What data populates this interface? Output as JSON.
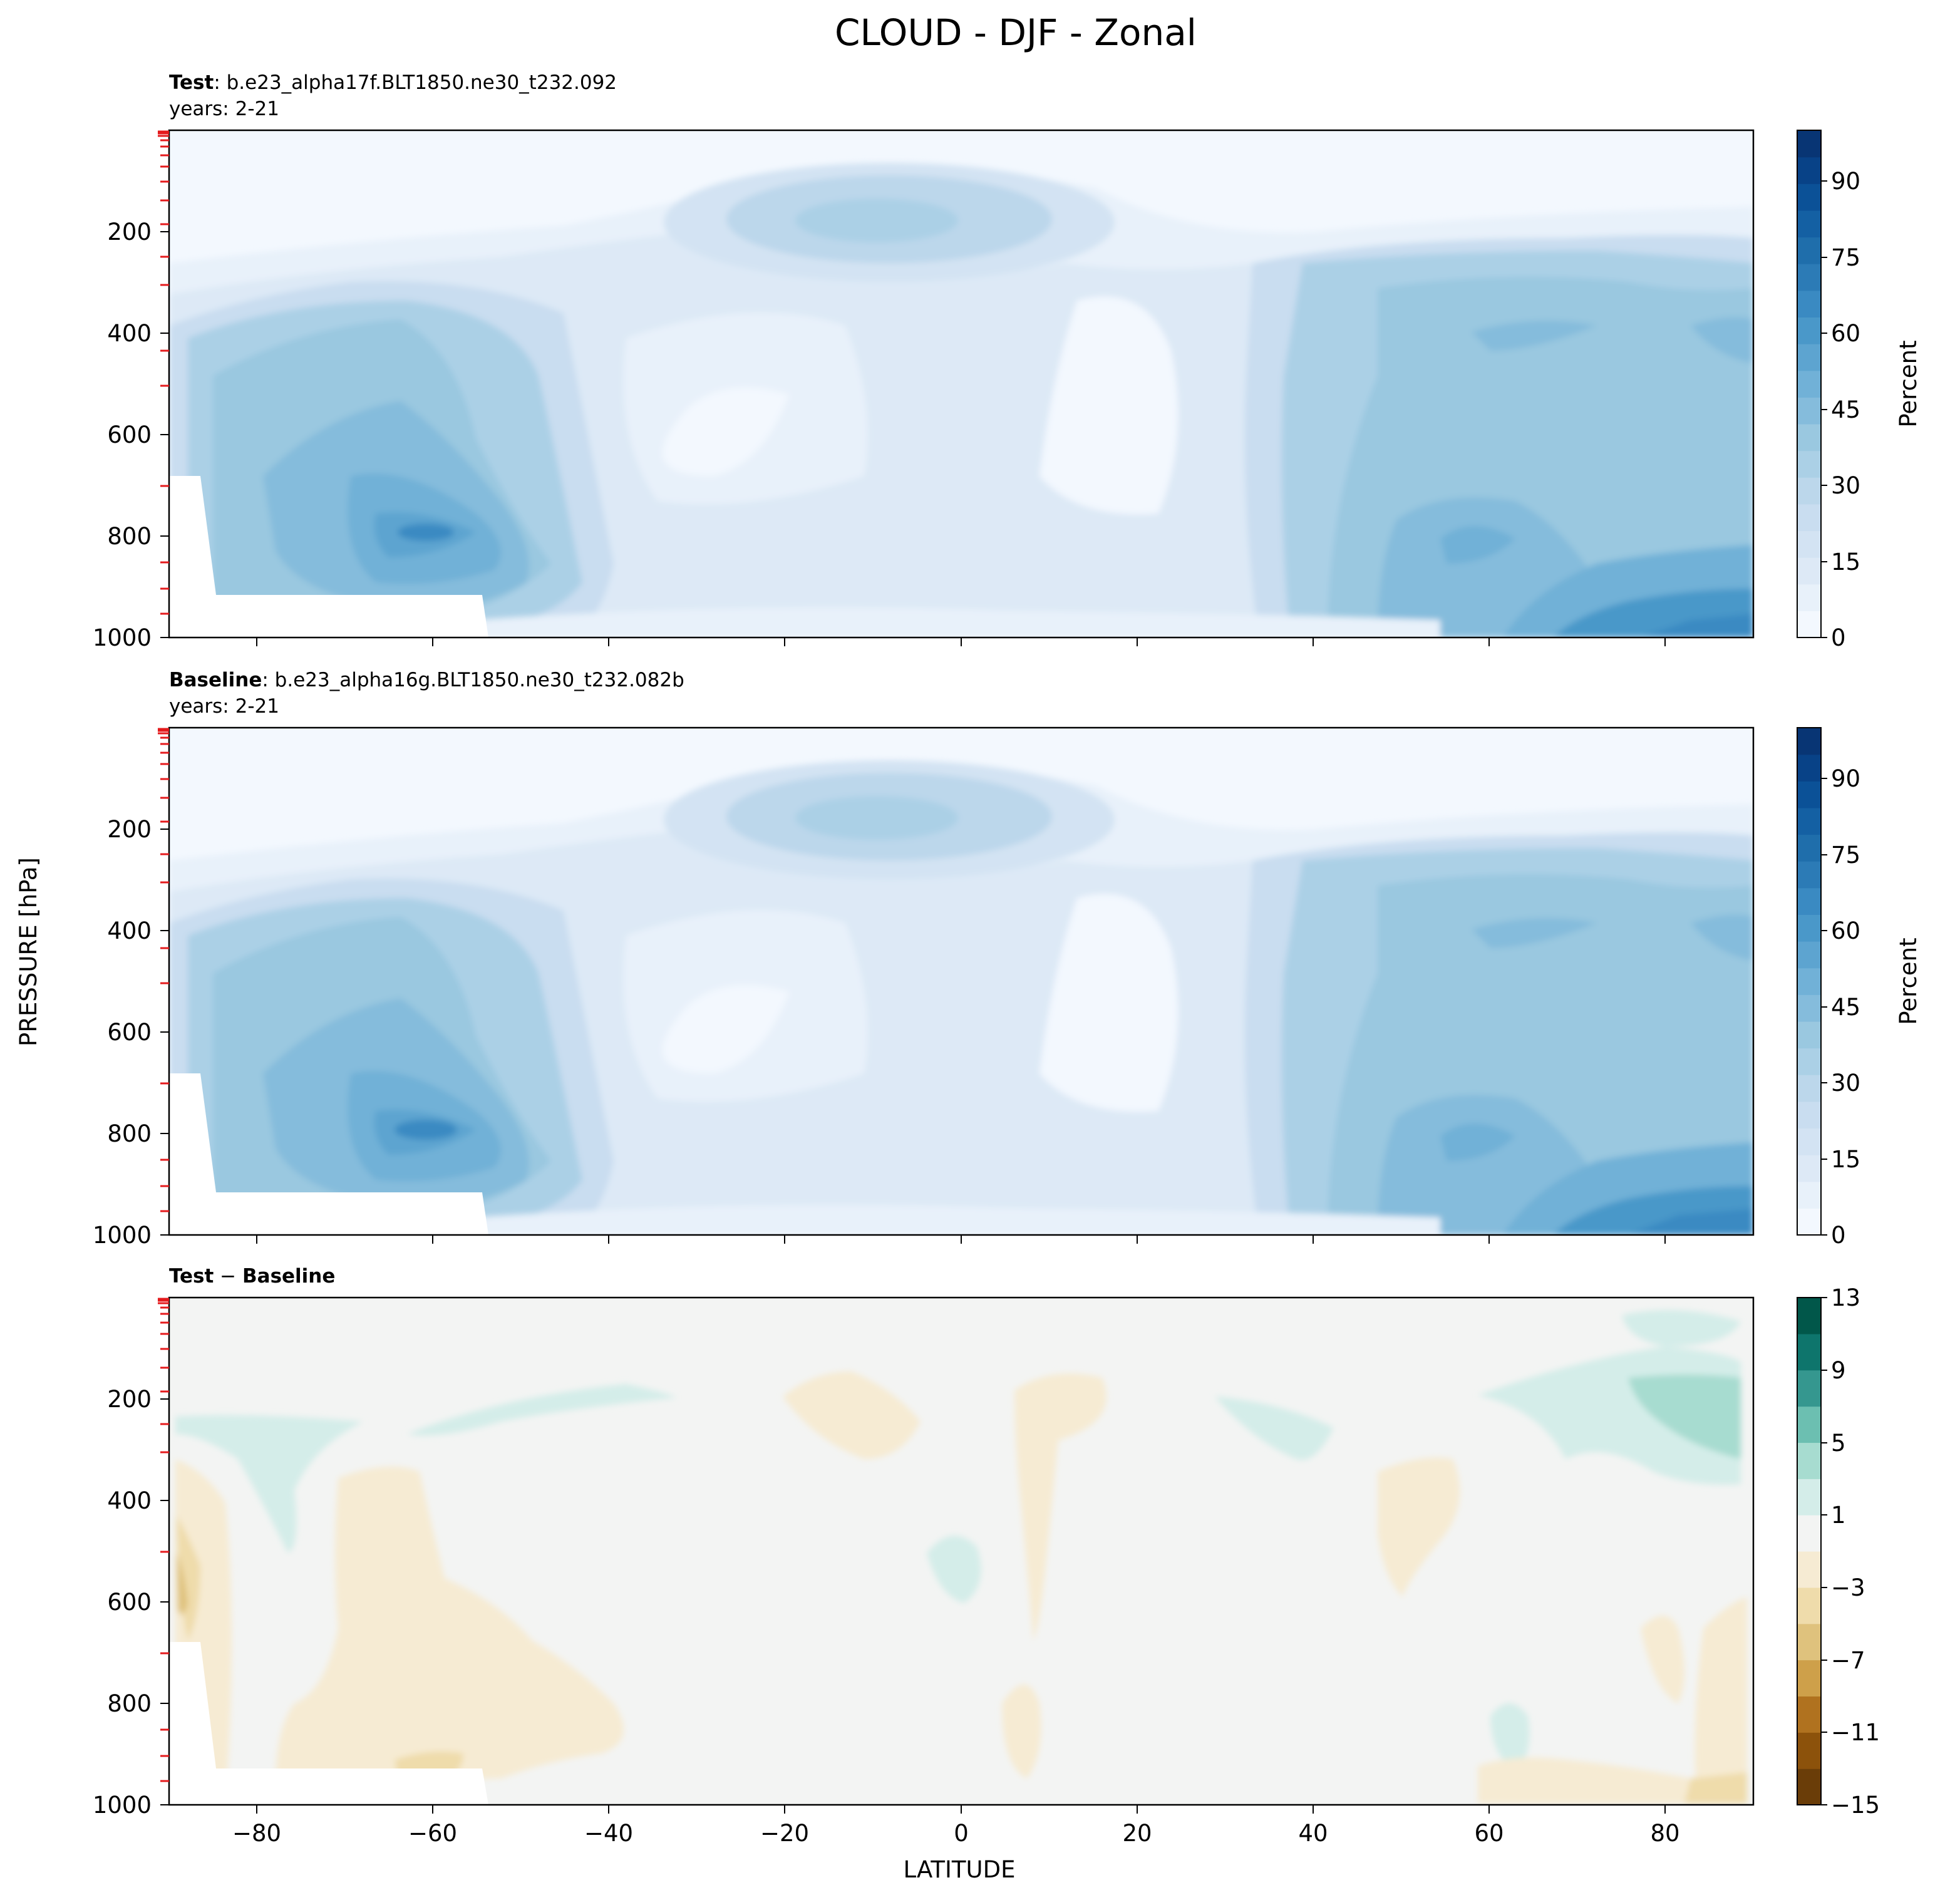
{
  "figure": {
    "title": "CLOUD - DJF - Zonal",
    "ylabel": "PRESSURE [hPa]",
    "xlabel": "LATITUDE"
  },
  "colors": {
    "blues": [
      "#f3f8fe",
      "#e8f1fa",
      "#dde9f6",
      "#d3e3f3",
      "#c9ddf0",
      "#bcd7eb",
      "#abd0e6",
      "#9ac8e0",
      "#85bcdc",
      "#71b1d7",
      "#5da4d0",
      "#4a98c9",
      "#3a8ac2",
      "#2c7bb6",
      "#1f6eab",
      "#1460a3",
      "#0b5197",
      "#084287",
      "#083574"
    ],
    "diverging": [
      "#6a3d08",
      "#8c520b",
      "#b0721f",
      "#cea04a",
      "#dfc27d",
      "#efdcab",
      "#f6ebd3",
      "#f3f4f3",
      "#d4ede9",
      "#a7dcd0",
      "#6cbfb1",
      "#35978f",
      "#0e756c",
      "#01574a"
    ],
    "rainbow_ticks": "#e41a1c"
  },
  "chart_data": [
    {
      "type": "contour",
      "panel": "test",
      "label_bold": "Test",
      "label_rest": ": b.e23_alpha17f.BLT1850.ne30_t232.092",
      "years": "years: 2-21",
      "x_range": [
        -90,
        90
      ],
      "y_range": [
        1000,
        0
      ],
      "y_ticks": [
        "200",
        "400",
        "600",
        "800",
        "1000"
      ],
      "x_ticks": [
        "−80",
        "−60",
        "−40",
        "−20",
        "0",
        "20",
        "40",
        "60",
        "80"
      ],
      "colorbar": {
        "label": "Percent",
        "range": [
          0,
          100
        ],
        "ticks": [
          "0",
          "15",
          "30",
          "45",
          "60",
          "75",
          "90"
        ]
      },
      "features": [
        {
          "lat": 10,
          "p": 550,
          "value": 4
        },
        {
          "lat": -25,
          "p": 680,
          "value": 5
        },
        {
          "lat": -60,
          "p": 850,
          "value": 60
        },
        {
          "lat": 62,
          "p": 850,
          "value": 50
        },
        {
          "lat": -8,
          "p": 180,
          "value": 40
        },
        {
          "lat": 85,
          "p": 980,
          "value": 60
        }
      ]
    },
    {
      "type": "contour",
      "panel": "baseline",
      "label_bold": "Baseline",
      "label_rest": ": b.e23_alpha16g.BLT1850.ne30_t232.082b",
      "years": "years: 2-21",
      "x_range": [
        -90,
        90
      ],
      "y_range": [
        1000,
        0
      ],
      "y_ticks": [
        "200",
        "400",
        "600",
        "800",
        "1000"
      ],
      "x_ticks": [
        "−80",
        "−60",
        "−40",
        "−20",
        "0",
        "20",
        "40",
        "60",
        "80"
      ],
      "colorbar": {
        "label": "Percent",
        "range": [
          0,
          100
        ],
        "ticks": [
          "0",
          "15",
          "30",
          "45",
          "60",
          "75",
          "90"
        ]
      },
      "features": [
        {
          "lat": 10,
          "p": 550,
          "value": 4
        },
        {
          "lat": -25,
          "p": 680,
          "value": 5
        },
        {
          "lat": -60,
          "p": 850,
          "value": 60
        },
        {
          "lat": 62,
          "p": 850,
          "value": 50
        },
        {
          "lat": -8,
          "p": 180,
          "value": 40
        },
        {
          "lat": 85,
          "p": 980,
          "value": 65
        }
      ]
    },
    {
      "type": "contour",
      "panel": "difference",
      "label_bold": "Test",
      "label_sep": " − ",
      "label_bold2": "Baseline",
      "x_range": [
        -90,
        90
      ],
      "y_range": [
        1000,
        0
      ],
      "y_ticks": [
        "200",
        "400",
        "600",
        "800",
        "1000"
      ],
      "x_ticks": [
        "−80",
        "−60",
        "−40",
        "−20",
        "0",
        "20",
        "40",
        "60",
        "80"
      ],
      "colorbar": {
        "label": "",
        "range": [
          -15,
          13
        ],
        "ticks": [
          "13",
          "9",
          "5",
          "1",
          "−3",
          "−7",
          "−11",
          "−15"
        ]
      },
      "features": [
        {
          "lat": 82,
          "p": 220,
          "value": 5
        },
        {
          "lat": -55,
          "p": 600,
          "value": -2
        },
        {
          "lat": 55,
          "p": 500,
          "value": -2
        },
        {
          "lat": -88,
          "p": 550,
          "value": -5
        },
        {
          "lat": 0,
          "p": 500,
          "value": 2
        },
        {
          "lat": 80,
          "p": 60,
          "value": 2
        },
        {
          "lat": -78,
          "p": 300,
          "value": 2
        }
      ]
    }
  ]
}
